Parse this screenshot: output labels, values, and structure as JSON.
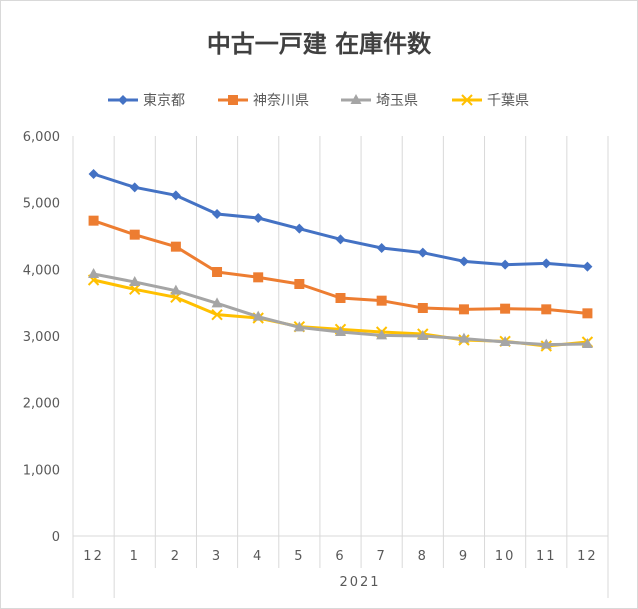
{
  "chart_data": {
    "type": "line",
    "title": "中古一戸建 在庫件数",
    "categories": [
      "12",
      "1",
      "2",
      "3",
      "4",
      "5",
      "6",
      "7",
      "8",
      "9",
      "10",
      "11",
      "12"
    ],
    "group_label": "2021",
    "ylim": [
      0,
      6000
    ],
    "yticks": [
      "0",
      "1,000",
      "2,000",
      "3,000",
      "4,000",
      "5,000",
      "6,000"
    ],
    "ytick_values": [
      0,
      1000,
      2000,
      3000,
      4000,
      5000,
      6000
    ],
    "grid": "vertical",
    "legend_position": "top",
    "series": [
      {
        "name": "東京都",
        "color": "#4472c4",
        "marker": "diamond",
        "values": [
          5430,
          5230,
          5110,
          4830,
          4770,
          4610,
          4450,
          4320,
          4250,
          4120,
          4070,
          4090,
          4040
        ]
      },
      {
        "name": "神奈川県",
        "color": "#ed7d31",
        "marker": "square",
        "values": [
          4730,
          4520,
          4340,
          3960,
          3880,
          3780,
          3570,
          3530,
          3420,
          3400,
          3410,
          3400,
          3340
        ]
      },
      {
        "name": "埼玉県",
        "color": "#a5a5a5",
        "marker": "triangle",
        "values": [
          3930,
          3810,
          3680,
          3490,
          3290,
          3130,
          3060,
          3010,
          3000,
          2960,
          2910,
          2870,
          2880
        ]
      },
      {
        "name": "千葉県",
        "color": "#ffc000",
        "marker": "x",
        "values": [
          3840,
          3700,
          3580,
          3320,
          3270,
          3140,
          3100,
          3060,
          3030,
          2940,
          2920,
          2850,
          2910
        ]
      }
    ]
  }
}
